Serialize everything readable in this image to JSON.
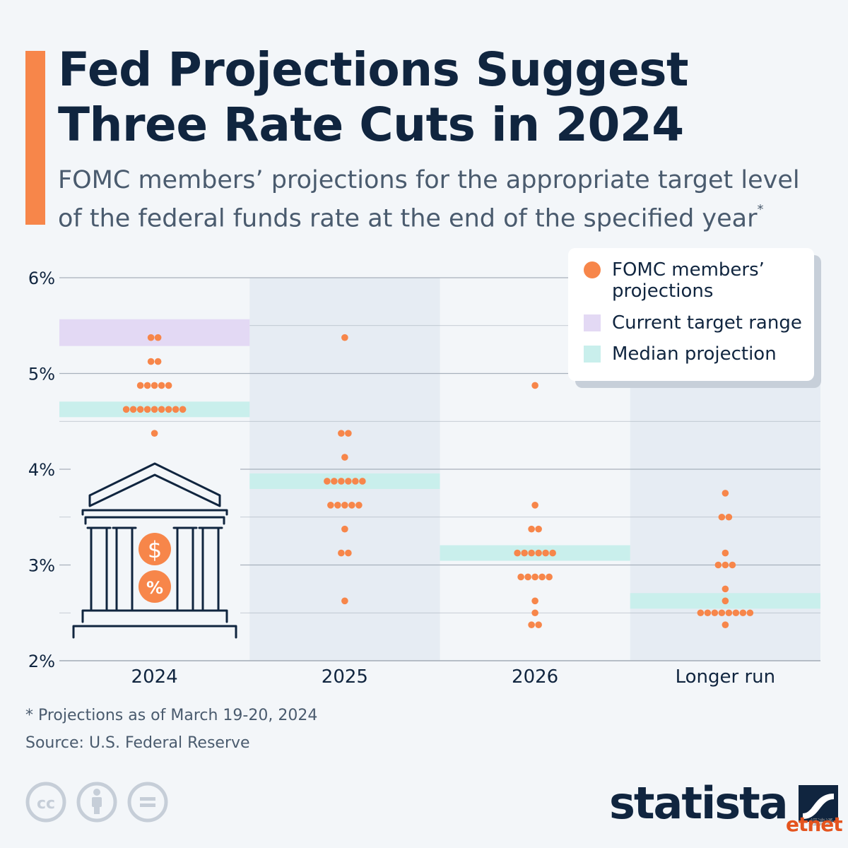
{
  "header": {
    "title_line1": "Fed Projections Suggest",
    "title_line2": "Three Rate Cuts in 2024",
    "subtitle_line1": "FOMC members’ projections for the appropriate target level",
    "subtitle_line2": "of the federal funds rate at the end of the specified year",
    "subtitle_marker": "*"
  },
  "legend": {
    "dots_label_line1": "FOMC members’",
    "dots_label_line2": "projections",
    "range_label": "Current target range",
    "median_label": "Median projection"
  },
  "chart_data": {
    "type": "scatter",
    "categories": [
      "2024",
      "2025",
      "2026",
      "Longer run"
    ],
    "ylim": [
      2,
      6
    ],
    "y_ticks": [
      2,
      3,
      4,
      5,
      6
    ],
    "y_tick_labels": [
      "2%",
      "3%",
      "4%",
      "5%",
      "6%"
    ],
    "grid": true,
    "current_target_range": {
      "category": "2024",
      "low": 5.25,
      "high": 5.5
    },
    "median_projections": [
      {
        "category": "2024",
        "value": 4.625
      },
      {
        "category": "2025",
        "value": 3.875
      },
      {
        "category": "2026",
        "value": 3.125
      },
      {
        "category": "Longer run",
        "value": 2.625
      }
    ],
    "projections": [
      {
        "category": "2024",
        "points": [
          {
            "rate": 5.375,
            "count": 2
          },
          {
            "rate": 5.125,
            "count": 2
          },
          {
            "rate": 4.875,
            "count": 5
          },
          {
            "rate": 4.625,
            "count": 9
          },
          {
            "rate": 4.375,
            "count": 1
          }
        ]
      },
      {
        "category": "2025",
        "points": [
          {
            "rate": 5.375,
            "count": 1
          },
          {
            "rate": 4.375,
            "count": 2
          },
          {
            "rate": 4.125,
            "count": 1
          },
          {
            "rate": 3.875,
            "count": 6
          },
          {
            "rate": 3.625,
            "count": 5
          },
          {
            "rate": 3.375,
            "count": 1
          },
          {
            "rate": 3.125,
            "count": 2
          },
          {
            "rate": 2.625,
            "count": 1
          }
        ]
      },
      {
        "category": "2026",
        "points": [
          {
            "rate": 4.875,
            "count": 1
          },
          {
            "rate": 3.625,
            "count": 1
          },
          {
            "rate": 3.375,
            "count": 2
          },
          {
            "rate": 3.125,
            "count": 6
          },
          {
            "rate": 2.875,
            "count": 5
          },
          {
            "rate": 2.625,
            "count": 1
          },
          {
            "rate": 2.5,
            "count": 1
          },
          {
            "rate": 2.375,
            "count": 2
          }
        ]
      },
      {
        "category": "Longer run",
        "points": [
          {
            "rate": 3.75,
            "count": 1
          },
          {
            "rate": 3.5,
            "count": 2
          },
          {
            "rate": 3.125,
            "count": 1
          },
          {
            "rate": 3.0,
            "count": 3
          },
          {
            "rate": 2.75,
            "count": 1
          },
          {
            "rate": 2.625,
            "count": 1
          },
          {
            "rate": 2.5,
            "count": 8
          },
          {
            "rate": 2.375,
            "count": 1
          }
        ]
      }
    ]
  },
  "colors": {
    "dot": "#f7864a",
    "current_range": "#e3d9f4",
    "median": "#c9efec",
    "shaded_column": "#e6ecf3",
    "grid": "#a7b1bc",
    "text": "#10253f"
  },
  "footer": {
    "footnote": "* Projections as of March 19-20, 2024",
    "source": "Source: U.S. Federal Reserve",
    "brand": "statista",
    "watermark": "etnet",
    "watermark_cn": "經濟通"
  },
  "icons": [
    "bank-building-icon",
    "dollar-icon",
    "percent-icon",
    "cc-icon",
    "attribution-icon",
    "no-derivatives-icon",
    "statista-logo-icon"
  ]
}
